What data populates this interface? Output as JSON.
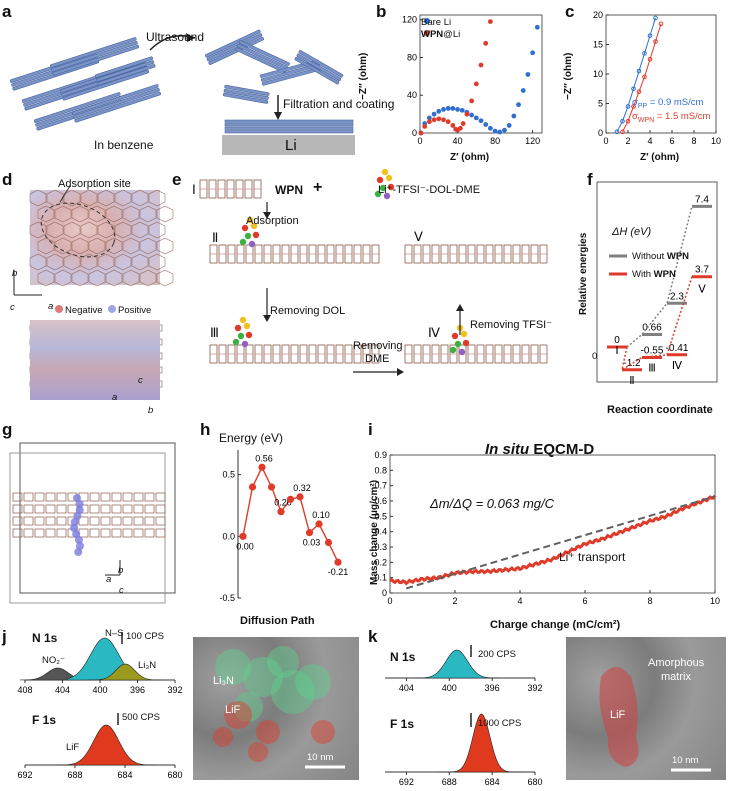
{
  "panels": {
    "a": {
      "label": "a",
      "ultrasound": "Ultrasound",
      "in_benzene": "In benzene",
      "filtration": "Filtration and coating",
      "li": "Li"
    },
    "b": {
      "label": "b",
      "ylabel": "−Z″ (ohm)",
      "xlabel": "Z′ (ohm)",
      "legend": {
        "bare": "Bare Li",
        "wpn_a": "WPN",
        "wpn_b": "@Li"
      },
      "xticks": [
        "0",
        "40",
        "80",
        "120"
      ],
      "yticks": [
        "0",
        "40",
        "80",
        "120"
      ]
    },
    "c": {
      "label": "c",
      "ylabel": "−Z″ (ohm)",
      "xlabel": "Z′ (ohm)",
      "sigma_pp": "σ",
      "sigma_pp_sub": "PP",
      "sigma_pp_val": " = 0.9 mS/cm",
      "sigma_wpn": "σ",
      "sigma_wpn_sub": "WPN",
      "sigma_wpn_val": " = 1.5 mS/cm",
      "xticks": [
        "0",
        "2",
        "4",
        "6",
        "8",
        "10"
      ],
      "yticks": [
        "0",
        "5",
        "10",
        "15",
        "20"
      ]
    },
    "d": {
      "label": "d",
      "adsorption": "Adsorption site",
      "negative": "Negative",
      "positive": "Positive",
      "b": "b",
      "a": "a",
      "c": "c"
    },
    "e": {
      "label": "e",
      "s1": "Ⅰ",
      "wpn": "WPN",
      "plus": "+",
      "electrolyte": "Li⁺-TFSI⁻-DOL-DME",
      "adsorption": "Adsorption",
      "s2": "Ⅱ",
      "s3": "Ⅲ",
      "s4": "Ⅳ",
      "s5": "Ⅴ",
      "remove_dol": "Removing DOL",
      "remove_dme_a": "Removing",
      "remove_dme_b": "DME",
      "remove_tfsi": "Removing TFSI⁻"
    },
    "f": {
      "label": "f",
      "ylabel": "Relative energies",
      "xlabel": "Reaction coordinate",
      "dH": "ΔH (eV)",
      "leg_without": "Without ",
      "leg_without_b": "WPN",
      "leg_with": "With ",
      "leg_with_b": "WPN",
      "stages": [
        "Ⅰ",
        "Ⅱ",
        "Ⅲ",
        "Ⅳ",
        "Ⅴ"
      ],
      "zero": "0"
    },
    "g": {
      "label": "g",
      "a": "a",
      "b": "b",
      "c": "c"
    },
    "h": {
      "label": "h",
      "energy": "Energy (eV)",
      "xlabel": "Diffusion Path",
      "yticks": [
        "-0.5",
        "0.0",
        "0.5"
      ]
    },
    "i": {
      "label": "i",
      "title_a": "In situ",
      "title_b": " EQCM-D",
      "ylabel": "Mass change (μg/cm²)",
      "xlabel": "Charge change (mC/cm²)",
      "eq": "Δm/ΔQ = 0.063 mg/C",
      "transport": "Li⁺ transport",
      "xticks": [
        "0",
        "2",
        "4",
        "6",
        "8",
        "10"
      ],
      "yticks": [
        "0.0",
        "0.1",
        "0.2",
        "0.3",
        "0.4",
        "0.5",
        "0.6",
        "0.7",
        "0.8",
        "0.9"
      ]
    },
    "j": {
      "label": "j",
      "n1s": "N 1s",
      "f1s": "F 1s",
      "ns": "N–S",
      "no2": "NO₂⁻",
      "li3n": "Li₃N",
      "lif": "LiF",
      "cps100": "100 CPS",
      "cps500": "500 CPS",
      "nticks": [
        "408",
        "404",
        "400",
        "396",
        "392"
      ],
      "fticks": [
        "692",
        "688",
        "684",
        "680"
      ],
      "tem_li3n": "Li₃N",
      "tem_lif": "LiF",
      "scale": "10 nm"
    },
    "k": {
      "label": "k",
      "n1s": "N 1s",
      "f1s": "F 1s",
      "cps200": "200 CPS",
      "cps1000": "1000 CPS",
      "nticks": [
        "404",
        "400",
        "396",
        "392"
      ],
      "fticks": [
        "692",
        "688",
        "684",
        "680"
      ],
      "amorph_a": "Amorphous",
      "amorph_b": "matrix",
      "lif": "LiF",
      "scale": "10 nm"
    }
  },
  "chart_data": [
    {
      "type": "scatter",
      "title": "",
      "xlabel": "Z′ (ohm)",
      "ylabel": "−Z″ (ohm)",
      "xlim": [
        0,
        130
      ],
      "ylim": [
        0,
        125
      ],
      "series": [
        {
          "name": "Bare Li",
          "color": "#2f6fd0",
          "x": [
            1,
            5,
            10,
            15,
            20,
            25,
            30,
            35,
            40,
            45,
            50,
            55,
            60,
            65,
            70,
            75,
            80,
            85,
            90,
            95,
            100,
            105,
            110,
            115,
            120,
            125
          ],
          "y": [
            0,
            10,
            16,
            20,
            23,
            25,
            26,
            26,
            25,
            24,
            22,
            19,
            16,
            13,
            9,
            5,
            2,
            1,
            3,
            8,
            18,
            30,
            45,
            62,
            85,
            112
          ]
        },
        {
          "name": "WPN@Li",
          "color": "#e03a2a",
          "x": [
            1,
            5,
            10,
            15,
            20,
            25,
            30,
            35,
            38,
            40,
            43,
            46,
            50,
            55,
            60,
            65,
            70,
            75
          ],
          "y": [
            0,
            7,
            12,
            14,
            15,
            14,
            12,
            8,
            4,
            3,
            5,
            10,
            20,
            34,
            52,
            72,
            95,
            118
          ]
        }
      ]
    },
    {
      "type": "line",
      "title": "",
      "xlabel": "Z′ (ohm)",
      "ylabel": "−Z″ (ohm)",
      "xlim": [
        0,
        10
      ],
      "ylim": [
        0,
        20
      ],
      "series": [
        {
          "name": "σPP = 0.9 mS/cm",
          "color": "#2f6fd0",
          "x": [
            1.0,
            1.5,
            2,
            2.5,
            3,
            3.5,
            4,
            4.5
          ],
          "y": [
            0.2,
            2,
            4.5,
            7.5,
            10.5,
            13.5,
            16.5,
            19.5
          ]
        },
        {
          "name": "σWPN = 1.5 mS/cm",
          "color": "#e03a2a",
          "x": [
            1.5,
            2,
            2.5,
            3,
            3.5,
            4,
            4.5,
            5
          ],
          "y": [
            0.2,
            2,
            4.5,
            7,
            9.5,
            12.5,
            15.5,
            18.5
          ]
        }
      ]
    },
    {
      "type": "line",
      "title": "",
      "xlabel": "Reaction coordinate",
      "ylabel": "Relative energies",
      "stages": [
        "Ⅰ",
        "Ⅱ",
        "Ⅲ",
        "Ⅳ",
        "Ⅴ"
      ],
      "series": [
        {
          "name": "Without WPN",
          "color": "#808080",
          "values": [
            0,
            null,
            0.66,
            2.3,
            7.4
          ]
        },
        {
          "name": "With WPN",
          "color": "#e03a2a",
          "values": [
            0,
            -1.2,
            -0.55,
            -0.41,
            3.7
          ]
        }
      ]
    },
    {
      "type": "line",
      "title": "",
      "xlabel": "Diffusion Path",
      "ylabel": "Energy (eV)",
      "ylim": [
        -0.5,
        0.7
      ],
      "series": [
        {
          "name": "",
          "color": "#e03a2a",
          "values": [
            0.0,
            0.4,
            0.56,
            0.4,
            0.2,
            0.3,
            0.32,
            0.03,
            0.1,
            -0.05,
            -0.21
          ],
          "labels": [
            "0.00",
            "",
            "0.56",
            "",
            "0.20",
            "",
            "0.32",
            "0.03",
            "0.10",
            "",
            "-0.21"
          ]
        }
      ]
    },
    {
      "type": "line",
      "title": "In situ EQCM-D",
      "xlabel": "Charge change (mC/cm²)",
      "ylabel": "Mass change (μg/cm²)",
      "xlim": [
        0,
        10
      ],
      "ylim": [
        0,
        0.9
      ],
      "series": [
        {
          "name": "",
          "color": "#e03a2a",
          "x": [
            0,
            0.5,
            1,
            1.5,
            2,
            2.5,
            3,
            3.5,
            4,
            4.5,
            5,
            5.5,
            6,
            6.5,
            7,
            7.5,
            8,
            8.5,
            9,
            9.5,
            10
          ],
          "y": [
            0.08,
            0.07,
            0.09,
            0.1,
            0.13,
            0.14,
            0.14,
            0.15,
            0.16,
            0.19,
            0.22,
            0.27,
            0.32,
            0.35,
            0.39,
            0.43,
            0.47,
            0.5,
            0.55,
            0.59,
            0.63
          ]
        },
        {
          "name": "fit",
          "color": "#606060",
          "x": [
            0.5,
            10
          ],
          "y": [
            0.03,
            0.63
          ]
        }
      ]
    },
    {
      "type": "area",
      "title": "N 1s",
      "x_ticks": [
        408,
        404,
        400,
        396,
        392
      ],
      "series": [
        {
          "name": "NO₂⁻",
          "center": 404.5
        },
        {
          "name": "N–S",
          "center": 399.5
        },
        {
          "name": "Li₃N",
          "center": 397.5
        }
      ]
    },
    {
      "type": "area",
      "title": "F 1s",
      "x_ticks": [
        692,
        688,
        684,
        680
      ],
      "series": [
        {
          "name": "LiF",
          "center": 685
        }
      ]
    }
  ]
}
